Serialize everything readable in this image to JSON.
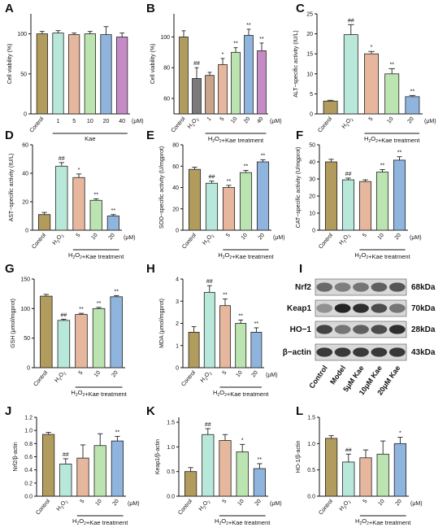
{
  "colors": {
    "control": "#b19b5d",
    "h2o2": "#b8e8da",
    "d5": "#e6b79d",
    "d10": "#bbe4b0",
    "d20": "#8fb4de",
    "d40": "#c68ac6",
    "h2o2_gray": "#7a7a7a",
    "d1": "#c9a38a"
  },
  "charts": [
    {
      "letter": "A",
      "type": "bar",
      "ylabel": "Cell viability (%)",
      "ylim": [
        0,
        125
      ],
      "ticks": [
        0,
        50,
        100
      ],
      "categories": [
        "Control",
        "1",
        "5",
        "10",
        "20",
        "40"
      ],
      "values": [
        100,
        101,
        99,
        100,
        99,
        96
      ],
      "errors": [
        3,
        3,
        2,
        3,
        10,
        5
      ],
      "colors": [
        "control",
        "h2o2",
        "d5",
        "d10",
        "d20",
        "d40"
      ],
      "sig": [
        "",
        "",
        "",
        "",
        "",
        ""
      ],
      "group": "Kae",
      "unit": "(μM)"
    },
    {
      "letter": "B",
      "type": "bar",
      "ylabel": "Cell viability (%)",
      "ylim": [
        50,
        115
      ],
      "ticks": [
        60,
        80,
        100
      ],
      "categories": [
        "Control",
        "H2O2",
        "1",
        "5",
        "10",
        "20",
        "40"
      ],
      "values": [
        100,
        73,
        75,
        82,
        90,
        101,
        91
      ],
      "errors": [
        4,
        7,
        2,
        4,
        3,
        4,
        5
      ],
      "colors": [
        "control",
        "h2o2_gray",
        "d1",
        "d5",
        "d10",
        "d20",
        "d40"
      ],
      "sig": [
        "",
        "##",
        "",
        "*",
        "**",
        "**",
        "**"
      ],
      "group": "H2O2+Kae treatment",
      "unit": "(μM)"
    },
    {
      "letter": "C",
      "type": "bar",
      "ylabel": "ALT−specific activity (IU/L)",
      "ylim": [
        0,
        25
      ],
      "ticks": [
        0,
        5,
        10,
        15,
        20,
        25
      ],
      "categories": [
        "Control",
        "H2O2",
        "5",
        "10",
        "20"
      ],
      "values": [
        3.2,
        19.8,
        15.0,
        10.0,
        4.3
      ],
      "errors": [
        0.2,
        2.5,
        0.6,
        1.3,
        0.3
      ],
      "colors": [
        "control",
        "h2o2",
        "d5",
        "d10",
        "d20"
      ],
      "sig": [
        "",
        "##",
        "*",
        "**",
        "**"
      ],
      "group": "H2O2+Kae treatment",
      "unit": "(μM)"
    },
    {
      "letter": "D",
      "type": "bar",
      "ylabel": "AST−specific activity (IU/L)",
      "ylim": [
        0,
        60
      ],
      "ticks": [
        0,
        20,
        40,
        60
      ],
      "categories": [
        "Control",
        "H2O2",
        "5",
        "10",
        "20"
      ],
      "values": [
        11,
        45,
        37,
        21,
        10
      ],
      "errors": [
        1.5,
        2.5,
        2.5,
        1.0,
        1.0
      ],
      "colors": [
        "control",
        "h2o2",
        "d5",
        "d10",
        "d20"
      ],
      "sig": [
        "",
        "##",
        "*",
        "**",
        "**"
      ],
      "group": "H2O2+Kae treatment",
      "unit": "(μM)"
    },
    {
      "letter": "E",
      "type": "bar",
      "ylabel": "SOD−specific activity (U/mgprot)",
      "ylim": [
        0,
        80
      ],
      "ticks": [
        0,
        20,
        40,
        60,
        80
      ],
      "categories": [
        "Control",
        "H2O2",
        "5",
        "10",
        "20"
      ],
      "values": [
        57,
        44,
        40,
        54,
        64
      ],
      "errors": [
        2,
        2,
        2,
        2,
        2
      ],
      "colors": [
        "control",
        "h2o2",
        "d5",
        "d10",
        "d20"
      ],
      "sig": [
        "",
        "##",
        "**",
        "**",
        "**"
      ],
      "group": "H2O2+Kae treatment",
      "unit": "(μM)"
    },
    {
      "letter": "F",
      "type": "bar",
      "ylabel": "CAT−specific activity (U/mgprot)",
      "ylim": [
        0,
        50
      ],
      "ticks": [
        0,
        10,
        20,
        30,
        40,
        50
      ],
      "categories": [
        "Control",
        "H2O2",
        "5",
        "10",
        "20"
      ],
      "values": [
        40,
        29.5,
        28.5,
        34,
        41
      ],
      "errors": [
        1.5,
        1,
        1,
        1.5,
        2
      ],
      "colors": [
        "control",
        "h2o2",
        "d5",
        "d10",
        "d20"
      ],
      "sig": [
        "",
        "##",
        "",
        "**",
        "**"
      ],
      "group": "H2O2+Kae treatment",
      "unit": "(μM)"
    },
    {
      "letter": "G",
      "type": "bar",
      "ylabel": "GSH (μmol/mgprot)",
      "ylim": [
        0,
        150
      ],
      "ticks": [
        0,
        50,
        100,
        150
      ],
      "categories": [
        "Control",
        "H2O2",
        "5",
        "10",
        "20"
      ],
      "values": [
        121,
        80,
        90,
        100,
        120
      ],
      "errors": [
        3,
        2,
        2,
        2,
        2
      ],
      "colors": [
        "control",
        "h2o2",
        "d5",
        "d10",
        "d20"
      ],
      "sig": [
        "",
        "##",
        "**",
        "**",
        "**"
      ],
      "group": "H2O2+Kae treatment",
      "unit": ""
    },
    {
      "letter": "H",
      "type": "bar",
      "ylabel": "MDA (μmol/mgprot)",
      "ylim": [
        0,
        4
      ],
      "ticks": [
        0,
        1,
        2,
        3,
        4
      ],
      "categories": [
        "Control",
        "H2O2",
        "5",
        "10",
        "20"
      ],
      "values": [
        1.6,
        3.4,
        2.8,
        2.0,
        1.6
      ],
      "errors": [
        0.25,
        0.3,
        0.3,
        0.15,
        0.2
      ],
      "colors": [
        "control",
        "h2o2",
        "d5",
        "d10",
        "d20"
      ],
      "sig": [
        "",
        "##",
        "**",
        "**",
        "**"
      ],
      "group": "H2O2+Kae treatment",
      "unit": "(μM)"
    },
    {
      "letter": "J",
      "type": "bar",
      "ylabel": "Nrf2/β-actin",
      "ylim": [
        0,
        1.2
      ],
      "ticks": [
        0,
        0.2,
        0.4,
        0.6,
        0.8,
        1.0,
        1.2
      ],
      "categories": [
        "Control",
        "H2O2",
        "5",
        "10",
        "20"
      ],
      "values": [
        0.94,
        0.49,
        0.58,
        0.77,
        0.84
      ],
      "errors": [
        0.03,
        0.08,
        0.2,
        0.18,
        0.07
      ],
      "colors": [
        "control",
        "h2o2",
        "d5",
        "d10",
        "d20"
      ],
      "sig": [
        "",
        "##",
        "",
        "",
        "**"
      ],
      "group": "H2O2+Kae treatment",
      "unit": "(μM)"
    },
    {
      "letter": "K",
      "type": "bar",
      "ylabel": "Keap1/β-actin",
      "ylim": [
        0,
        1.6
      ],
      "ticks": [
        0,
        0.5,
        1.0,
        1.5
      ],
      "categories": [
        "Control",
        "H2O2",
        "5",
        "10",
        "20"
      ],
      "values": [
        0.5,
        1.25,
        1.13,
        0.9,
        0.56
      ],
      "errors": [
        0.08,
        0.12,
        0.12,
        0.15,
        0.1
      ],
      "colors": [
        "control",
        "h2o2",
        "d5",
        "d10",
        "d20"
      ],
      "sig": [
        "",
        "##",
        "",
        "*",
        "**"
      ],
      "group": "H2O2+Kae treatment",
      "unit": "(μM)"
    },
    {
      "letter": "L",
      "type": "bar",
      "ylabel": "HO-1/β-actin",
      "ylim": [
        0,
        1.5
      ],
      "ticks": [
        0,
        0.5,
        1.0,
        1.5
      ],
      "categories": [
        "Control",
        "H2O2",
        "5",
        "10",
        "20"
      ],
      "values": [
        1.1,
        0.65,
        0.73,
        0.8,
        1.0
      ],
      "errors": [
        0.05,
        0.15,
        0.15,
        0.25,
        0.12
      ],
      "colors": [
        "control",
        "h2o2",
        "d5",
        "d10",
        "d20"
      ],
      "sig": [
        "",
        "##",
        "",
        "",
        "*"
      ],
      "group": "H2O2+Kae treatment",
      "unit": "(μM)"
    }
  ],
  "blot": {
    "letter": "I",
    "proteins": [
      {
        "name": "Nrf2",
        "kda": "68kDa"
      },
      {
        "name": "Keap1",
        "kda": "70kDa"
      },
      {
        "name": "HO−1",
        "kda": "28kDa"
      },
      {
        "name": "β−actin",
        "kda": "43kDa"
      }
    ],
    "lanes": [
      "Control",
      "Model",
      "5μM Kae",
      "10μM Kae",
      "20μM Kae"
    ]
  }
}
